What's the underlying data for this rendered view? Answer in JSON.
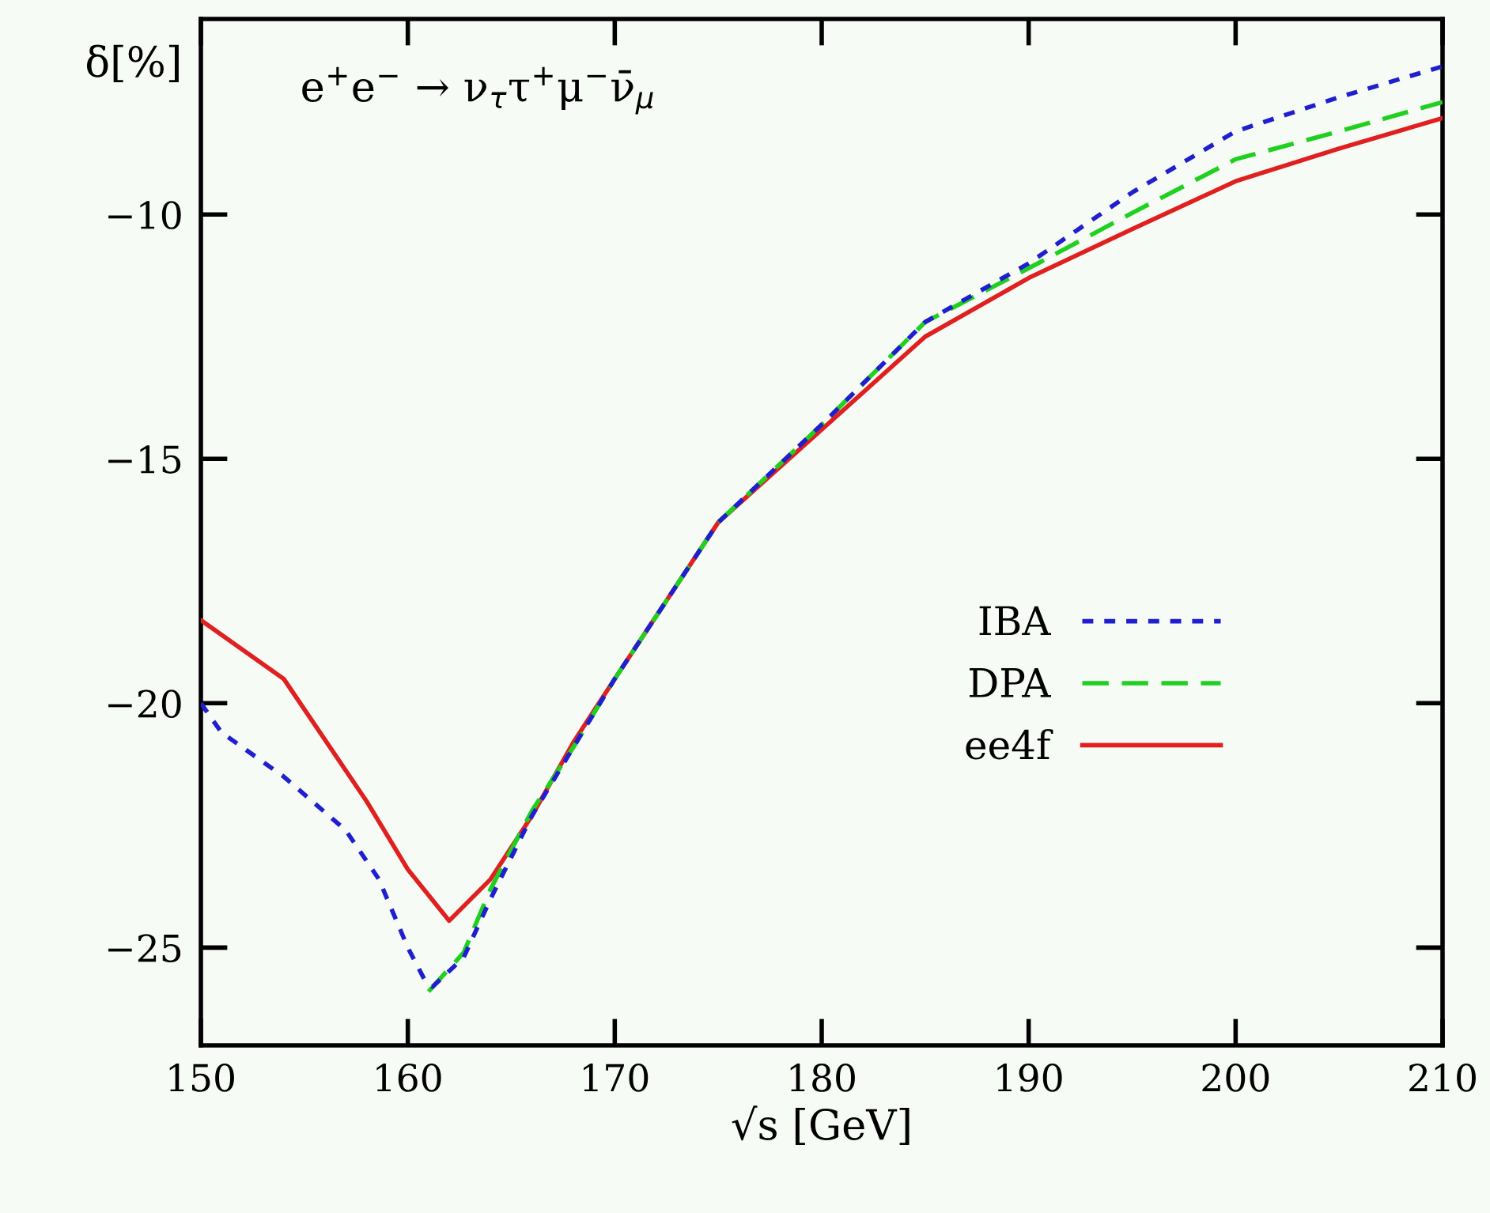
{
  "chart_data": {
    "type": "line",
    "xlabel": "√s [GeV]",
    "ylabel": "δ[%]",
    "annotations": [
      "e$^{+}$e$^{−}$ → ν$_{τ}$τ$^{+}$μ$^{−}$ν̄$_{μ}$"
    ],
    "xlim": [
      150,
      210
    ],
    "ylim": [
      -27,
      -6
    ],
    "xticks": [
      150,
      160,
      170,
      180,
      190,
      200,
      210
    ],
    "yticks": [
      {
        "value": -10,
        "label": "−10"
      },
      {
        "value": -15,
        "label": "−15"
      },
      {
        "value": -20,
        "label": "−20"
      },
      {
        "value": -25,
        "label": "−25"
      }
    ],
    "grid": false,
    "legend": "right",
    "series": [
      {
        "name": "IBA",
        "color": "#1f1fd0",
        "line_style": "dotted",
        "x": [
          150,
          151,
          154,
          157,
          158.6,
          160,
          160.8,
          161.2,
          162.7,
          164,
          166,
          168,
          170,
          175,
          180,
          185,
          190,
          195,
          200,
          205,
          210
        ],
        "values": [
          -20.0,
          -20.6,
          -21.5,
          -22.6,
          -23.6,
          -25.0,
          -25.65,
          -25.8,
          -25.2,
          -24.0,
          -22.3,
          -20.9,
          -19.5,
          -16.3,
          -14.3,
          -12.2,
          -11.0,
          -9.55,
          -8.3,
          -7.6,
          -6.97
        ]
      },
      {
        "name": "DPA",
        "color": "#20d020",
        "line_style": "dashed",
        "x": [
          161,
          162.7,
          164,
          166,
          168,
          170,
          175,
          180,
          185,
          190,
          195,
          200,
          205,
          210
        ],
        "values": [
          -25.9,
          -25.1,
          -23.8,
          -22.2,
          -20.9,
          -19.5,
          -16.3,
          -14.3,
          -12.2,
          -11.1,
          -9.97,
          -8.87,
          -8.3,
          -7.7
        ]
      },
      {
        "name": "ee4f",
        "color": "#e02020",
        "line_style": "solid",
        "x": [
          150,
          154,
          158,
          160,
          162,
          164,
          166,
          168,
          170,
          175,
          180,
          185,
          190,
          195,
          200,
          205,
          210
        ],
        "values": [
          -18.3,
          -19.5,
          -22.0,
          -23.4,
          -24.45,
          -23.6,
          -22.3,
          -20.8,
          -19.5,
          -16.3,
          -14.4,
          -12.5,
          -11.3,
          -10.3,
          -9.32,
          -8.65,
          -8.03
        ]
      }
    ]
  }
}
